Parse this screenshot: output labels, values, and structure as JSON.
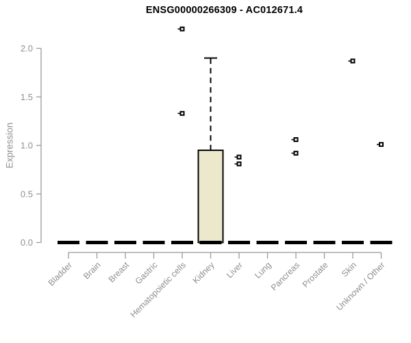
{
  "page": {
    "background": "#ffffff"
  },
  "chart_data": {
    "type": "box",
    "title": "ENSG00000266309 - AC012671.4",
    "ylabel": "Expression",
    "xlabel": "",
    "ylim": [
      0,
      2.0
    ],
    "yticks": [
      0,
      0.5,
      1,
      1.5,
      2
    ],
    "ytick_labels": [
      "0.0",
      "0.5",
      "1.0",
      "1.5",
      "2.0"
    ],
    "grid": false,
    "legend": null,
    "categories": [
      "Bladder",
      "Brain",
      "Breast",
      "Gastric",
      "Hematopoietic cells",
      "Kidney",
      "Liver",
      "Lung",
      "Pancreas",
      "Prostate",
      "Skin",
      "Unknown / Other"
    ],
    "boxes": [
      {
        "category": "Bladder",
        "whisker_low": 0,
        "q1": 0,
        "median": 0,
        "q3": 0,
        "whisker_high": 0,
        "outliers": []
      },
      {
        "category": "Brain",
        "whisker_low": 0,
        "q1": 0,
        "median": 0,
        "q3": 0,
        "whisker_high": 0,
        "outliers": []
      },
      {
        "category": "Breast",
        "whisker_low": 0,
        "q1": 0,
        "median": 0,
        "q3": 0,
        "whisker_high": 0,
        "outliers": []
      },
      {
        "category": "Gastric",
        "whisker_low": 0,
        "q1": 0,
        "median": 0,
        "q3": 0,
        "whisker_high": 0,
        "outliers": []
      },
      {
        "category": "Hematopoietic cells",
        "whisker_low": 0,
        "q1": 0,
        "median": 0,
        "q3": 0,
        "whisker_high": 0,
        "outliers": [
          2.2,
          1.33
        ]
      },
      {
        "category": "Kidney",
        "whisker_low": 0,
        "q1": 0,
        "median": 0,
        "q3": 0.95,
        "whisker_high": 1.9,
        "outliers": []
      },
      {
        "category": "Liver",
        "whisker_low": 0,
        "q1": 0,
        "median": 0,
        "q3": 0,
        "whisker_high": 0,
        "outliers": [
          0.88,
          0.81
        ]
      },
      {
        "category": "Lung",
        "whisker_low": 0,
        "q1": 0,
        "median": 0,
        "q3": 0,
        "whisker_high": 0,
        "outliers": []
      },
      {
        "category": "Pancreas",
        "whisker_low": 0,
        "q1": 0,
        "median": 0,
        "q3": 0,
        "whisker_high": 0,
        "outliers": [
          1.06,
          0.92
        ]
      },
      {
        "category": "Prostate",
        "whisker_low": 0,
        "q1": 0,
        "median": 0,
        "q3": 0,
        "whisker_high": 0,
        "outliers": []
      },
      {
        "category": "Skin",
        "whisker_low": 0,
        "q1": 0,
        "median": 0,
        "q3": 0,
        "whisker_high": 0,
        "outliers": [
          1.87
        ]
      },
      {
        "category": "Unknown / Other",
        "whisker_low": 0,
        "q1": 0,
        "median": 0,
        "q3": 0,
        "whisker_high": 0,
        "outliers": [
          1.01
        ]
      }
    ],
    "colors": {
      "box_fill": "#ECE8CC",
      "box_stroke": "#000000",
      "median_color": "#000000",
      "whisker_color": "#000000",
      "outlier_color": "#000000",
      "axis_line": "#999999",
      "tick_text": "#8F8F8F",
      "title_text": "#000000"
    }
  }
}
